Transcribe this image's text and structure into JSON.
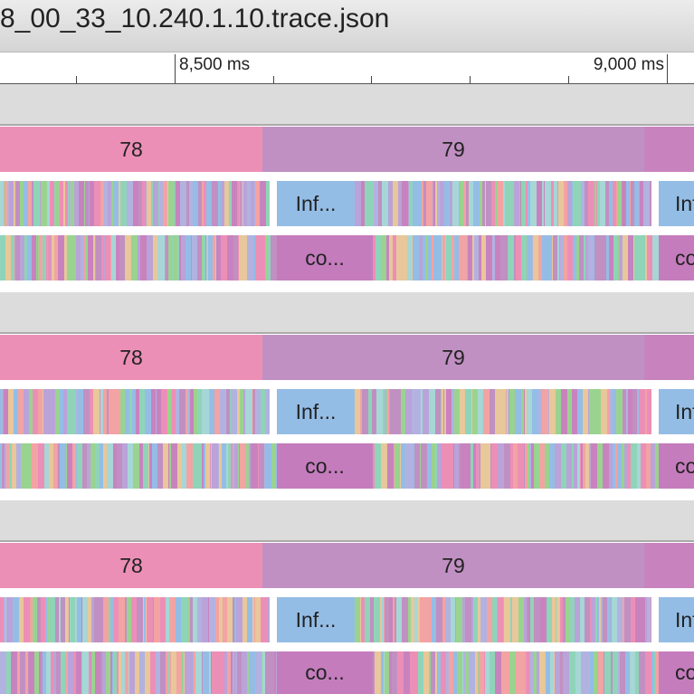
{
  "window": {
    "title": "8_00_33_10.240.1.10.trace.json"
  },
  "ruler": {
    "labels": [
      "8,500 ms",
      "9,000 ms"
    ]
  },
  "colors": {
    "slice_78": "#ec8fb6",
    "slice_79": "#c090c2",
    "slice_80": "#c883bf",
    "inf": "#94bde6",
    "co": "#c47cbd",
    "stripe_palette": [
      "#c090c2",
      "#94bde6",
      "#9ad38f",
      "#ec8fb6",
      "#b9a3d9",
      "#f2a3a3",
      "#a6d6d6",
      "#c883bf",
      "#e8c79a",
      "#b2b2e0",
      "#8fd4b8"
    ]
  },
  "groups": [
    {
      "frame_a": "78",
      "frame_b": "79",
      "inf_label": "Inf...",
      "inf_label_2": "Inf...",
      "co_label": "co...",
      "co_label_2": "co..."
    },
    {
      "frame_a": "78",
      "frame_b": "79",
      "inf_label": "Inf...",
      "inf_label_2": "Inf...",
      "co_label": "co...",
      "co_label_2": "co..."
    },
    {
      "frame_a": "78",
      "frame_b": "79",
      "inf_label": "Inf...",
      "inf_label_2": "Inf...",
      "co_label": "co...",
      "co_label_2": "co..."
    }
  ]
}
